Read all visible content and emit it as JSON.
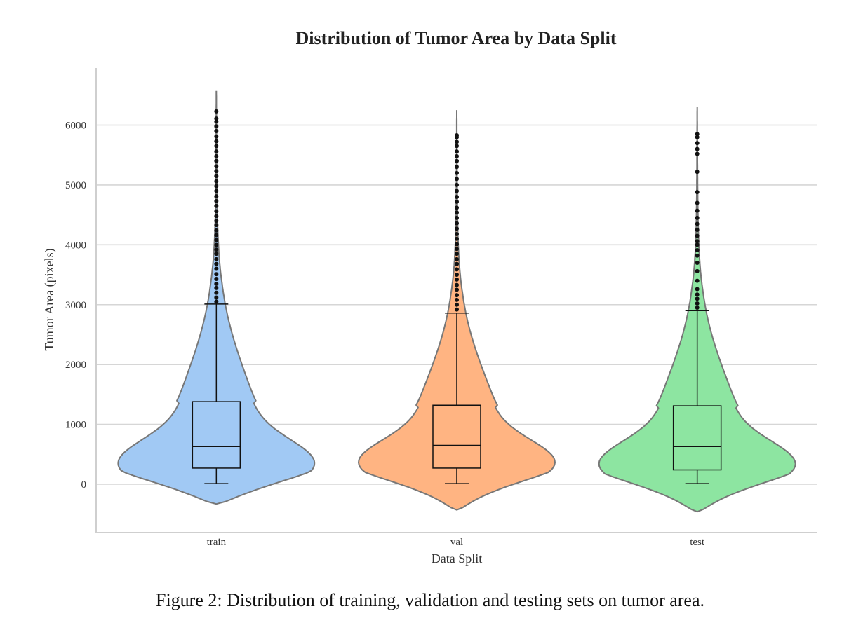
{
  "chart_data": {
    "type": "violin",
    "title": "Distribution of Tumor Area by Data Split",
    "xlabel": "Data Split",
    "ylabel": "Tumor Area (pixels)",
    "ylim": [
      -800,
      6950
    ],
    "yticks": [
      0,
      1000,
      2000,
      3000,
      4000,
      5000,
      6000
    ],
    "grid": "horizontal",
    "categories": [
      "train",
      "val",
      "test"
    ],
    "series": [
      {
        "category": "train",
        "color": "#a1c9f4",
        "box": {
          "whisker_low": 10,
          "q1": 270,
          "median": 630,
          "q3": 1380,
          "whisker_high": 3010
        },
        "kde_range": [
          -330,
          6570
        ],
        "outliers": [
          3050,
          3120,
          3200,
          3280,
          3350,
          3430,
          3510,
          3600,
          3680,
          3760,
          3850,
          3920,
          4000,
          4080,
          4160,
          4240,
          4330,
          4400,
          4480,
          4560,
          4650,
          4730,
          4810,
          4900,
          4980,
          5060,
          5150,
          5230,
          5310,
          5400,
          5480,
          5560,
          5650,
          5730,
          5810,
          5900,
          5980,
          6060,
          6110,
          6230
        ]
      },
      {
        "category": "val",
        "color": "#ffb482",
        "box": {
          "whisker_low": 10,
          "q1": 270,
          "median": 650,
          "q3": 1320,
          "whisker_high": 2860
        },
        "kde_range": [
          -430,
          6250
        ],
        "outliers": [
          2920,
          3000,
          3080,
          3160,
          3250,
          3330,
          3420,
          3500,
          3590,
          3680,
          3760,
          3850,
          3930,
          4010,
          4100,
          4180,
          4270,
          4360,
          4450,
          4540,
          4620,
          4720,
          4800,
          4900,
          5000,
          5100,
          5200,
          5300,
          5400,
          5480,
          5560,
          5650,
          5720,
          5800,
          5830
        ]
      },
      {
        "category": "test",
        "color": "#8de5a1",
        "box": {
          "whisker_low": 10,
          "q1": 240,
          "median": 630,
          "q3": 1310,
          "whisker_high": 2900
        },
        "kde_range": [
          -460,
          6300
        ],
        "outliers": [
          2950,
          3020,
          3100,
          3170,
          3260,
          3400,
          3560,
          3700,
          3820,
          3910,
          4000,
          4060,
          4150,
          4250,
          4350,
          4450,
          4570,
          4700,
          4880,
          5220,
          5520,
          5600,
          5700,
          5800,
          5850
        ]
      }
    ]
  },
  "caption": "Figure 2: Distribution of training, validation and testing sets on tumor area."
}
